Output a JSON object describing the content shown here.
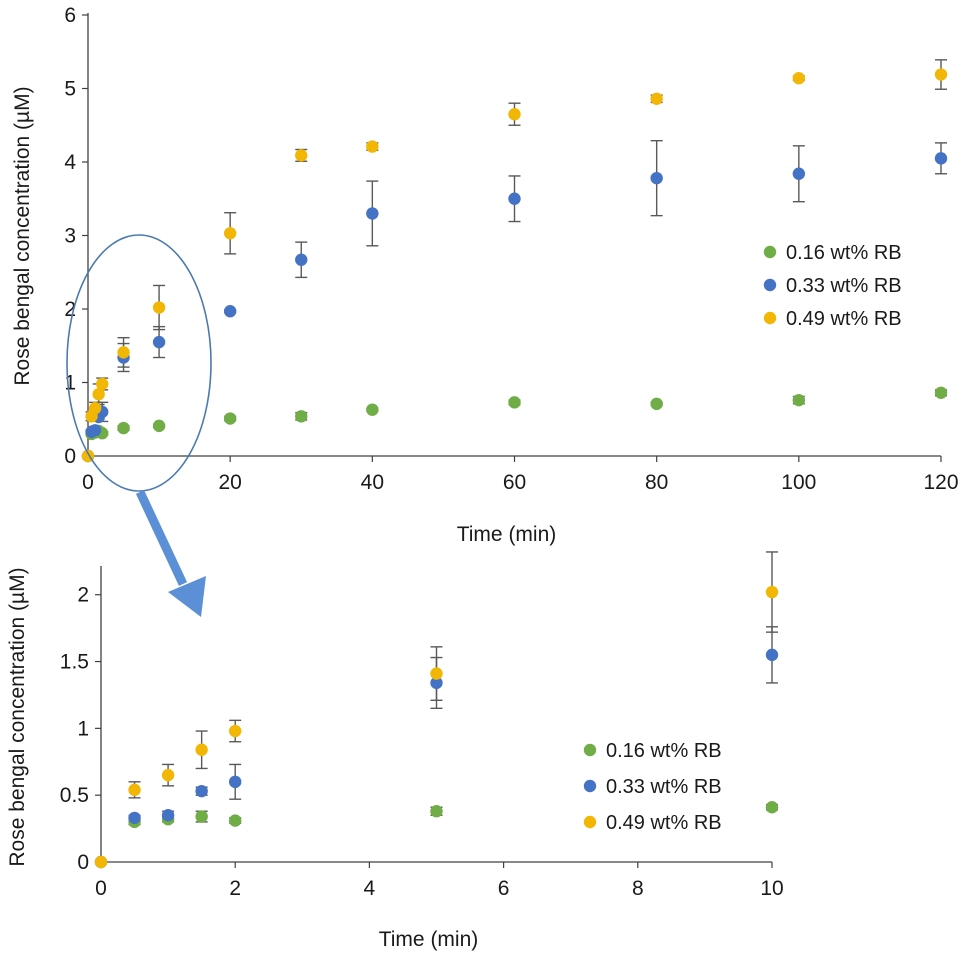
{
  "colors": {
    "series_0": "#70ad47",
    "series_1": "#4472c4",
    "series_2": "#f2b705",
    "error_bar": "#595959",
    "axis": "#404040",
    "highlight": "#4a7ab0",
    "arrow": "#5b8fd6"
  },
  "chart_data": [
    {
      "type": "scatter",
      "title": "",
      "xlabel": "Time (min)",
      "ylabel": "Rose bengal concentration (µM)",
      "xlim": [
        0,
        120
      ],
      "ylim": [
        0,
        6
      ],
      "xticks": [
        0,
        20,
        40,
        60,
        80,
        100,
        120
      ],
      "yticks": [
        0,
        1,
        2,
        3,
        4,
        5,
        6
      ],
      "xtick_labels": [
        "0",
        "20",
        "40",
        "60",
        "80",
        "100",
        "120"
      ],
      "ytick_labels": [
        "0",
        "1",
        "2",
        "3",
        "4",
        "5",
        "6"
      ],
      "grid": false,
      "legend_position": "right",
      "series": [
        {
          "name": "0.16 wt% RB",
          "x": [
            0,
            0.5,
            1,
            1.5,
            2,
            5,
            10,
            20,
            30,
            40,
            60,
            80,
            100,
            120
          ],
          "y": [
            0,
            0.3,
            0.32,
            0.34,
            0.31,
            0.38,
            0.41,
            0.51,
            0.54,
            0.63,
            0.73,
            0.71,
            0.76,
            0.86
          ],
          "err": [
            0,
            0.02,
            0.02,
            0.04,
            0.02,
            0.03,
            0.02,
            0.03,
            0.05,
            0.02,
            0.03,
            0.02,
            0.05,
            0.04
          ]
        },
        {
          "name": "0.33 wt% RB",
          "x": [
            0,
            0.5,
            1,
            1.5,
            2,
            5,
            10,
            20,
            30,
            40,
            60,
            80,
            100,
            120
          ],
          "y": [
            0,
            0.33,
            0.35,
            0.53,
            0.6,
            1.34,
            1.55,
            1.97,
            2.67,
            3.3,
            3.5,
            3.78,
            3.84,
            4.05
          ],
          "err": [
            0,
            0.02,
            0.03,
            0.03,
            0.13,
            0.19,
            0.21,
            0.02,
            0.24,
            0.44,
            0.31,
            0.51,
            0.38,
            0.21
          ]
        },
        {
          "name": "0.49 wt% RB",
          "x": [
            0,
            0.5,
            1,
            1.5,
            2,
            5,
            10,
            20,
            30,
            40,
            60,
            80,
            100,
            120
          ],
          "y": [
            0,
            0.54,
            0.65,
            0.84,
            0.98,
            1.41,
            2.02,
            3.03,
            4.09,
            4.21,
            4.65,
            4.86,
            5.14,
            5.19
          ],
          "err": [
            0,
            0.06,
            0.08,
            0.14,
            0.08,
            0.2,
            0.3,
            0.28,
            0.08,
            0.05,
            0.15,
            0.05,
            0.03,
            0.2
          ]
        }
      ]
    },
    {
      "type": "scatter",
      "title": "",
      "xlabel": "Time (min)",
      "ylabel": "Rose bengal concentration (µM)",
      "xlim": [
        0,
        10
      ],
      "ylim": [
        0,
        2.2
      ],
      "xticks": [
        0,
        2,
        4,
        6,
        8,
        10
      ],
      "yticks": [
        0,
        0.5,
        1,
        1.5,
        2
      ],
      "xtick_labels": [
        "0",
        "2",
        "4",
        "6",
        "8",
        "10"
      ],
      "ytick_labels": [
        "0",
        "0.5",
        "1",
        "1.5",
        "2"
      ],
      "grid": false,
      "legend_position": "right",
      "series": [
        {
          "name": "0.16 wt% RB",
          "x": [
            0,
            0.5,
            1,
            1.5,
            2,
            5,
            10
          ],
          "y": [
            0,
            0.3,
            0.32,
            0.34,
            0.31,
            0.38,
            0.41
          ],
          "err": [
            0,
            0.02,
            0.02,
            0.04,
            0.02,
            0.03,
            0.02
          ]
        },
        {
          "name": "0.33 wt% RB",
          "x": [
            0,
            0.5,
            1,
            1.5,
            2,
            5,
            10
          ],
          "y": [
            0,
            0.33,
            0.35,
            0.53,
            0.6,
            1.34,
            1.55
          ],
          "err": [
            0,
            0.02,
            0.03,
            0.03,
            0.13,
            0.19,
            0.21
          ]
        },
        {
          "name": "0.49 wt% RB",
          "x": [
            0,
            0.5,
            1,
            1.5,
            2,
            5,
            10
          ],
          "y": [
            0,
            0.54,
            0.65,
            0.84,
            0.98,
            1.41,
            2.02
          ],
          "err": [
            0,
            0.06,
            0.08,
            0.14,
            0.08,
            0.2,
            0.3
          ]
        }
      ]
    }
  ]
}
